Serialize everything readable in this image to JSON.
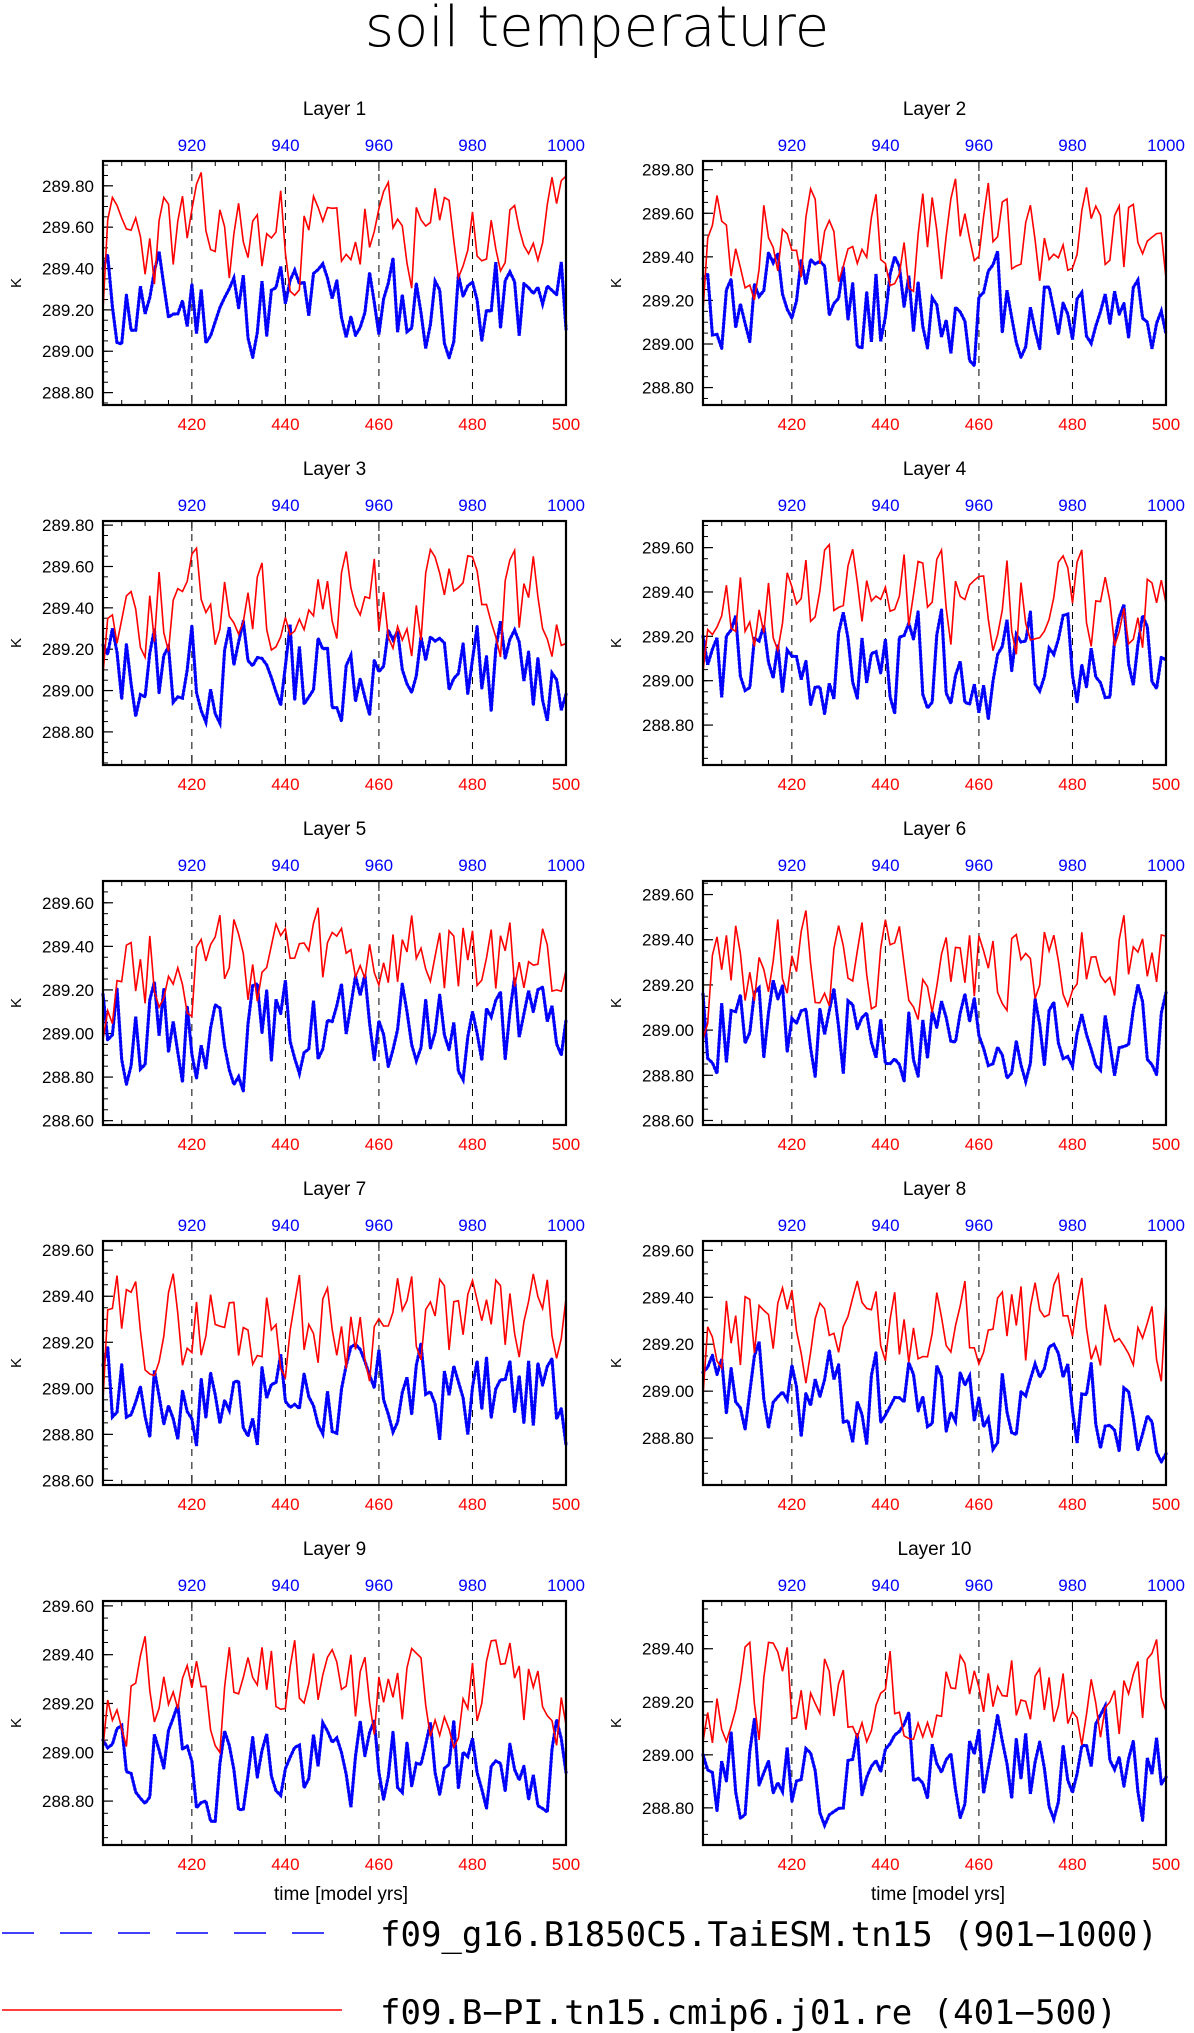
{
  "figure": {
    "title": "soil temperature",
    "bottom_xlabel": "time [model yrs]"
  },
  "legend": [
    {
      "name": "f09_g16.B1850C5.TaiESM.tn15 (901−1000)",
      "color": "#0000ff",
      "style": "dashed"
    },
    {
      "name": "f09.B−PI.tn15.cmip6.j01.re (401−500)",
      "color": "#ff0000",
      "style": "solid"
    }
  ],
  "chart_data": [
    {
      "type": "line",
      "title": "Layer 1",
      "ylabel": "K",
      "ylim": [
        288.74,
        289.92
      ],
      "yticks": [
        "288.80",
        "289.00",
        "289.20",
        "289.40",
        "289.60",
        "289.80"
      ],
      "xlim_bottom": [
        401,
        500
      ],
      "xticks_bottom": [
        "420",
        "440",
        "460",
        "480",
        "500"
      ],
      "xlim_top": [
        901,
        1000
      ],
      "xticks_top": [
        "920",
        "940",
        "960",
        "980",
        "1000"
      ],
      "grid": "dashed verticals at 420,440,460,480",
      "series": [
        {
          "name": "f09_g16.B1850C5.TaiESM.tn15 (901−1000)",
          "axis": "top",
          "mean": 289.22,
          "amp": 0.16,
          "start": 289.4,
          "min": 288.83,
          "max": 289.55,
          "seed": 11
        },
        {
          "name": "f09.B−PI.tn15.cmip6.j01.re (401−500)",
          "axis": "bottom",
          "mean": 289.55,
          "amp": 0.17,
          "start": 289.15,
          "min": 289.2,
          "max": 289.88,
          "seed": 23
        }
      ]
    },
    {
      "type": "line",
      "title": "Layer 2",
      "ylabel": "K",
      "ylim": [
        288.72,
        289.84
      ],
      "yticks": [
        "288.80",
        "289.00",
        "289.20",
        "289.40",
        "289.60",
        "289.80"
      ],
      "xlim_bottom": [
        401,
        500
      ],
      "xticks_bottom": [
        "420",
        "440",
        "460",
        "480",
        "500"
      ],
      "xlim_top": [
        901,
        1000
      ],
      "xticks_top": [
        "920",
        "940",
        "960",
        "980",
        "1000"
      ],
      "grid": "dashed verticals at 420,440,460,480",
      "series": [
        {
          "name": "f09_g16.B1850C5.TaiESM.tn15 (901−1000)",
          "axis": "top",
          "mean": 289.17,
          "amp": 0.16,
          "start": 289.3,
          "min": 288.76,
          "max": 289.49,
          "seed": 12
        },
        {
          "name": "f09.B−PI.tn15.cmip6.j01.re (401−500)",
          "axis": "bottom",
          "mean": 289.48,
          "amp": 0.16,
          "start": 289.08,
          "min": 289.15,
          "max": 289.8,
          "seed": 24
        }
      ]
    },
    {
      "type": "line",
      "title": "Layer 3",
      "ylabel": "K",
      "ylim": [
        288.64,
        289.82
      ],
      "yticks": [
        "288.80",
        "289.00",
        "289.20",
        "289.40",
        "289.60",
        "289.80"
      ],
      "xlim_bottom": [
        401,
        500
      ],
      "xticks_bottom": [
        "420",
        "440",
        "460",
        "480",
        "500"
      ],
      "xlim_top": [
        901,
        1000
      ],
      "xticks_top": [
        "920",
        "940",
        "960",
        "980",
        "1000"
      ],
      "grid": "dashed verticals at 420,440,460,480",
      "series": [
        {
          "name": "f09_g16.B1850C5.TaiESM.tn15 (901−1000)",
          "axis": "top",
          "mean": 289.1,
          "amp": 0.16,
          "start": 289.22,
          "min": 288.7,
          "max": 289.42,
          "seed": 13
        },
        {
          "name": "f09.B−PI.tn15.cmip6.j01.re (401−500)",
          "axis": "bottom",
          "mean": 289.42,
          "amp": 0.16,
          "start": 289.04,
          "min": 289.08,
          "max": 289.74,
          "seed": 25
        }
      ]
    },
    {
      "type": "line",
      "title": "Layer 4",
      "ylabel": "K",
      "ylim": [
        288.62,
        289.72
      ],
      "yticks": [
        "288.80",
        "289.00",
        "289.20",
        "289.40",
        "289.60"
      ],
      "xlim_bottom": [
        401,
        500
      ],
      "xticks_bottom": [
        "420",
        "440",
        "460",
        "480",
        "500"
      ],
      "xlim_top": [
        901,
        1000
      ],
      "xticks_top": [
        "920",
        "940",
        "960",
        "980",
        "1000"
      ],
      "grid": "dashed verticals at 420,440,460,480",
      "series": [
        {
          "name": "f09_g16.B1850C5.TaiESM.tn15 (901−1000)",
          "axis": "top",
          "mean": 289.06,
          "amp": 0.15,
          "start": 289.2,
          "min": 288.68,
          "max": 289.37,
          "seed": 14
        },
        {
          "name": "f09.B−PI.tn15.cmip6.j01.re (401−500)",
          "axis": "bottom",
          "mean": 289.37,
          "amp": 0.15,
          "start": 288.99,
          "min": 289.04,
          "max": 289.69,
          "seed": 26
        }
      ]
    },
    {
      "type": "line",
      "title": "Layer 5",
      "ylabel": "K",
      "ylim": [
        288.58,
        289.7
      ],
      "yticks": [
        "288.60",
        "288.80",
        "289.00",
        "289.20",
        "289.40",
        "289.60"
      ],
      "xlim_bottom": [
        401,
        500
      ],
      "xticks_bottom": [
        "420",
        "440",
        "460",
        "480",
        "500"
      ],
      "xlim_top": [
        901,
        1000
      ],
      "xticks_top": [
        "920",
        "940",
        "960",
        "980",
        "1000"
      ],
      "grid": "dashed verticals at 420,440,460,480",
      "series": [
        {
          "name": "f09_g16.B1850C5.TaiESM.tn15 (901−1000)",
          "axis": "top",
          "mean": 289.02,
          "amp": 0.15,
          "start": 289.18,
          "min": 288.64,
          "max": 289.33,
          "seed": 15
        },
        {
          "name": "f09.B−PI.tn15.cmip6.j01.re (401−500)",
          "axis": "bottom",
          "mean": 289.32,
          "amp": 0.15,
          "start": 288.95,
          "min": 288.97,
          "max": 289.65,
          "seed": 27
        }
      ]
    },
    {
      "type": "line",
      "title": "Layer 6",
      "ylabel": "K",
      "ylim": [
        288.58,
        289.66
      ],
      "yticks": [
        "288.60",
        "288.80",
        "289.00",
        "289.20",
        "289.40",
        "289.60"
      ],
      "xlim_bottom": [
        401,
        500
      ],
      "xticks_bottom": [
        "420",
        "440",
        "460",
        "480",
        "500"
      ],
      "xlim_top": [
        901,
        1000
      ],
      "xticks_top": [
        "920",
        "940",
        "960",
        "980",
        "1000"
      ],
      "grid": "dashed verticals at 420,440,460,480",
      "series": [
        {
          "name": "f09_g16.B1850C5.TaiESM.tn15 (901−1000)",
          "axis": "top",
          "mean": 288.99,
          "amp": 0.15,
          "start": 289.16,
          "min": 288.64,
          "max": 289.3,
          "seed": 16
        },
        {
          "name": "f09.B−PI.tn15.cmip6.j01.re (401−500)",
          "axis": "bottom",
          "mean": 289.3,
          "amp": 0.14,
          "start": 288.95,
          "min": 288.96,
          "max": 289.61,
          "seed": 28
        }
      ]
    },
    {
      "type": "line",
      "title": "Layer 7",
      "ylabel": "K",
      "ylim": [
        288.58,
        289.64
      ],
      "yticks": [
        "288.60",
        "288.80",
        "289.00",
        "289.20",
        "289.40",
        "289.60"
      ],
      "xlim_bottom": [
        401,
        500
      ],
      "xticks_bottom": [
        "420",
        "440",
        "460",
        "480",
        "500"
      ],
      "xlim_top": [
        901,
        1000
      ],
      "xticks_top": [
        "920",
        "940",
        "960",
        "980",
        "1000"
      ],
      "grid": "dashed verticals at 420,440,460,480",
      "series": [
        {
          "name": "f09_g16.B1850C5.TaiESM.tn15 (901−1000)",
          "axis": "top",
          "mean": 288.97,
          "amp": 0.14,
          "start": 289.1,
          "min": 288.64,
          "max": 289.28,
          "seed": 17
        },
        {
          "name": "f09.B−PI.tn15.cmip6.j01.re (401−500)",
          "axis": "bottom",
          "mean": 289.28,
          "amp": 0.14,
          "start": 288.95,
          "min": 288.95,
          "max": 289.6,
          "seed": 29
        }
      ]
    },
    {
      "type": "line",
      "title": "Layer 8",
      "ylabel": "K",
      "ylim": [
        288.6,
        289.64
      ],
      "yticks": [
        "288.80",
        "289.00",
        "289.20",
        "289.40",
        "289.60"
      ],
      "xlim_bottom": [
        401,
        500
      ],
      "xticks_bottom": [
        "420",
        "440",
        "460",
        "480",
        "500"
      ],
      "xlim_top": [
        901,
        1000
      ],
      "xticks_top": [
        "920",
        "940",
        "960",
        "980",
        "1000"
      ],
      "grid": "dashed verticals at 420,440,460,480",
      "series": [
        {
          "name": "f09_g16.B1850C5.TaiESM.tn15 (901−1000)",
          "axis": "top",
          "mean": 288.96,
          "amp": 0.14,
          "start": 289.08,
          "min": 288.66,
          "max": 289.27,
          "seed": 18
        },
        {
          "name": "f09.B−PI.tn15.cmip6.j01.re (401−500)",
          "axis": "bottom",
          "mean": 289.26,
          "amp": 0.14,
          "start": 288.98,
          "min": 288.95,
          "max": 289.59,
          "seed": 30
        }
      ]
    },
    {
      "type": "line",
      "title": "Layer 9",
      "ylabel": "K",
      "ylim": [
        288.62,
        289.62
      ],
      "yticks": [
        "288.80",
        "289.00",
        "289.20",
        "289.40",
        "289.60"
      ],
      "xlim_bottom": [
        401,
        500
      ],
      "xticks_bottom": [
        "420",
        "440",
        "460",
        "480",
        "500"
      ],
      "xlim_top": [
        901,
        1000
      ],
      "xticks_top": [
        "920",
        "940",
        "960",
        "980",
        "1000"
      ],
      "grid": "dashed verticals at 420,440,460,480",
      "series": [
        {
          "name": "f09_g16.B1850C5.TaiESM.tn15 (901−1000)",
          "axis": "top",
          "mean": 288.95,
          "amp": 0.13,
          "start": 289.05,
          "min": 288.68,
          "max": 289.26,
          "seed": 19
        },
        {
          "name": "f09.B−PI.tn15.cmip6.j01.re (401−500)",
          "axis": "bottom",
          "mean": 289.25,
          "amp": 0.13,
          "start": 289.02,
          "min": 288.97,
          "max": 289.57,
          "seed": 31
        }
      ]
    },
    {
      "type": "line",
      "title": "Layer 10",
      "ylabel": "K",
      "ylim": [
        288.66,
        289.58
      ],
      "yticks": [
        "288.80",
        "289.00",
        "289.20",
        "289.40"
      ],
      "xlim_bottom": [
        401,
        500
      ],
      "xticks_bottom": [
        "420",
        "440",
        "460",
        "480",
        "500"
      ],
      "xlim_top": [
        901,
        1000
      ],
      "xticks_top": [
        "920",
        "940",
        "960",
        "980",
        "1000"
      ],
      "grid": "dashed verticals at 420,440,460,480",
      "series": [
        {
          "name": "f09_g16.B1850C5.TaiESM.tn15 (901−1000)",
          "axis": "top",
          "mean": 288.95,
          "amp": 0.12,
          "start": 289.0,
          "min": 288.72,
          "max": 289.24,
          "seed": 20
        },
        {
          "name": "f09.B−PI.tn15.cmip6.j01.re (401−500)",
          "axis": "bottom",
          "mean": 289.24,
          "amp": 0.12,
          "start": 289.05,
          "min": 289.0,
          "max": 289.55,
          "seed": 32
        }
      ]
    }
  ]
}
